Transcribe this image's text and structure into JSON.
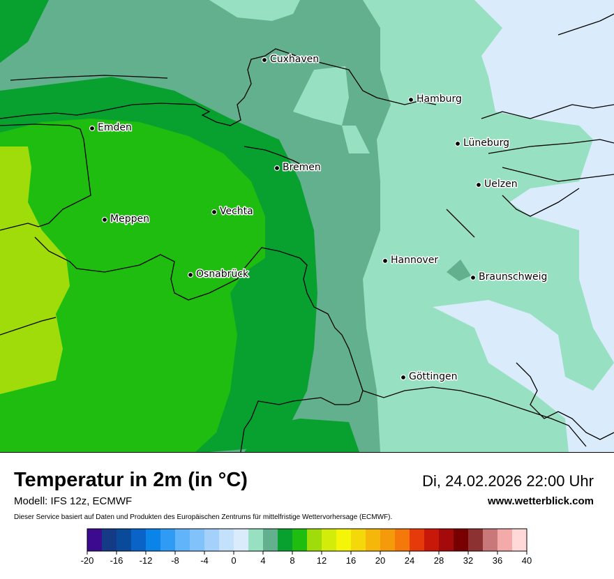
{
  "title": "Temperatur in 2m (in °C)",
  "model": "Modell: IFS 12z, ECMWF",
  "disclaimer": "Dieser Service basiert auf Daten und Produkten des Europäischen Zentrums für mittelfristige Wettervorhersage (ECMWF).",
  "datetime": "Di, 24.02.2026 22:00 Uhr",
  "website": "www.wetterblick.com",
  "cities": [
    {
      "name": "Cuxhaven"
    },
    {
      "name": "Hamburg"
    },
    {
      "name": "Emden"
    },
    {
      "name": "Lüneburg"
    },
    {
      "name": "Bremen"
    },
    {
      "name": "Uelzen"
    },
    {
      "name": "Vechta"
    },
    {
      "name": "Meppen"
    },
    {
      "name": "Hannover"
    },
    {
      "name": "Osnabrück"
    },
    {
      "name": "Braunschweig"
    },
    {
      "name": "Göttingen"
    }
  ],
  "legend": {
    "tick_labels": [
      "-20",
      "-16",
      "-12",
      "-8",
      "-4",
      "0",
      "4",
      "8",
      "12",
      "16",
      "20",
      "24",
      "28",
      "32",
      "36",
      "40"
    ],
    "colors": [
      "#3b0a8f",
      "#153b87",
      "#0a4a9a",
      "#0a64c8",
      "#0a84e8",
      "#2f9bf5",
      "#62b4fa",
      "#82c2fb",
      "#a3d1fb",
      "#c4e1fc",
      "#daecfc",
      "#98e0c2",
      "#63b08e",
      "#08a12f",
      "#1fbd0f",
      "#a0dc0a",
      "#d4ec0a",
      "#f5f50a",
      "#f5d80a",
      "#f5b80a",
      "#f59a0a",
      "#f5780a",
      "#e63a0a",
      "#c8180a",
      "#a50a0a",
      "#780000",
      "#8c3232",
      "#c87878",
      "#f5aaaa",
      "#ffd8d8"
    ]
  }
}
